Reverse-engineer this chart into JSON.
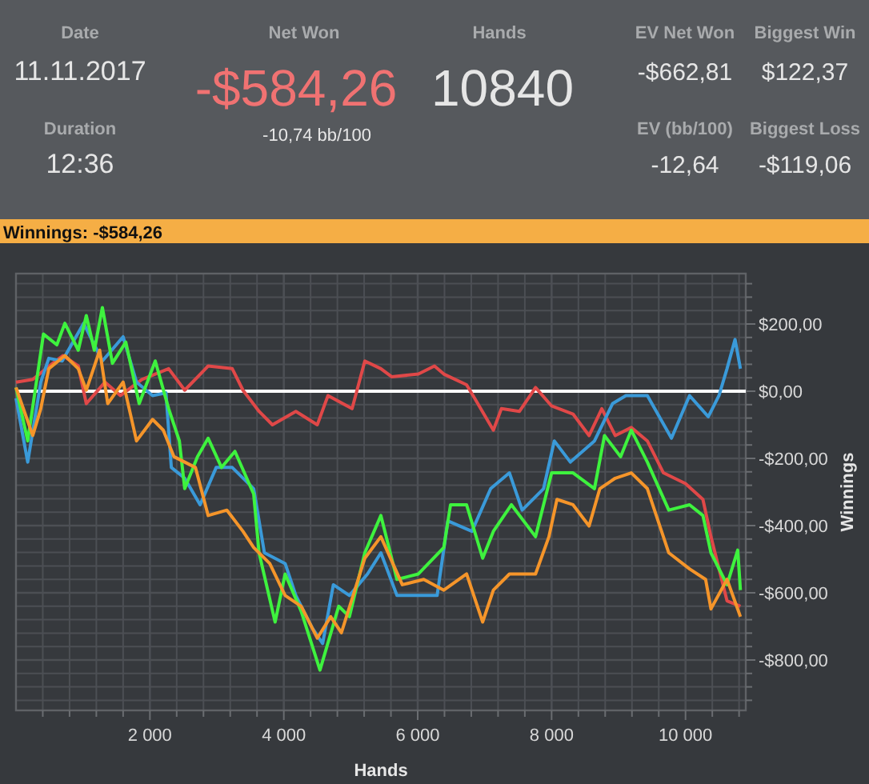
{
  "chart_data": [
    {
      "type": "other",
      "annotations": [
        "Date",
        "11.11.2017",
        "Duration",
        "12:36",
        "Net Won",
        "-$584,26",
        "-10,74 bb/100",
        "Hands",
        "10840",
        "EV Net Won",
        "-$662,81",
        "EV (bb/100)",
        "-12,64",
        "Biggest Win",
        "$122,37",
        "Biggest Loss",
        "-$119,06"
      ]
    },
    {
      "type": "line",
      "title": "Winnings: -$584,26",
      "xlabel": "Hands",
      "ylabel": "Winnings",
      "xlim": [
        0,
        10900
      ],
      "ylim": [
        -950,
        350
      ],
      "xticks": [
        {
          "value": 400,
          "label": null
        },
        {
          "value": 800,
          "label": null
        },
        {
          "value": 1200,
          "label": null
        },
        {
          "value": 1600,
          "label": null
        },
        {
          "value": 2000,
          "label": "2 000"
        },
        {
          "value": 2400,
          "label": null
        },
        {
          "value": 2800,
          "label": null
        },
        {
          "value": 3200,
          "label": null
        },
        {
          "value": 3600,
          "label": null
        },
        {
          "value": 4000,
          "label": "4 000"
        },
        {
          "value": 4400,
          "label": null
        },
        {
          "value": 4800,
          "label": null
        },
        {
          "value": 5200,
          "label": null
        },
        {
          "value": 5600,
          "label": null
        },
        {
          "value": 6000,
          "label": "6 000"
        },
        {
          "value": 6400,
          "label": null
        },
        {
          "value": 6800,
          "label": null
        },
        {
          "value": 7200,
          "label": null
        },
        {
          "value": 7600,
          "label": null
        },
        {
          "value": 8000,
          "label": "8 000"
        },
        {
          "value": 8400,
          "label": null
        },
        {
          "value": 8800,
          "label": null
        },
        {
          "value": 9200,
          "label": null
        },
        {
          "value": 9600,
          "label": null
        },
        {
          "value": 10000,
          "label": "10 000"
        },
        {
          "value": 10400,
          "label": null
        },
        {
          "value": 10800,
          "label": null
        }
      ],
      "yticks": [
        {
          "value": -920,
          "label": null
        },
        {
          "value": -880,
          "label": null
        },
        {
          "value": -840,
          "label": null
        },
        {
          "value": -800,
          "label": "-$800,00"
        },
        {
          "value": -760,
          "label": null
        },
        {
          "value": -720,
          "label": null
        },
        {
          "value": -680,
          "label": null
        },
        {
          "value": -640,
          "label": null
        },
        {
          "value": -600,
          "label": "-$600,00"
        },
        {
          "value": -560,
          "label": null
        },
        {
          "value": -520,
          "label": null
        },
        {
          "value": -480,
          "label": null
        },
        {
          "value": -440,
          "label": null
        },
        {
          "value": -400,
          "label": "-$400,00"
        },
        {
          "value": -360,
          "label": null
        },
        {
          "value": -320,
          "label": null
        },
        {
          "value": -280,
          "label": null
        },
        {
          "value": -240,
          "label": null
        },
        {
          "value": -200,
          "label": "-$200,00"
        },
        {
          "value": -160,
          "label": null
        },
        {
          "value": -120,
          "label": null
        },
        {
          "value": -80,
          "label": null
        },
        {
          "value": -40,
          "label": null
        },
        {
          "value": 0,
          "label": "$0,00"
        },
        {
          "value": 40,
          "label": null
        },
        {
          "value": 80,
          "label": null
        },
        {
          "value": 120,
          "label": null
        },
        {
          "value": 160,
          "label": null
        },
        {
          "value": 200,
          "label": "$200,00"
        },
        {
          "value": 240,
          "label": null
        },
        {
          "value": 280,
          "label": null
        },
        {
          "value": 320,
          "label": null
        }
      ],
      "grid": true,
      "ref_lines": [
        {
          "axis": "y",
          "value": 0,
          "color": "#ffffff"
        }
      ],
      "series": [
        {
          "color": "#e04848",
          "x": [
            0,
            250,
            550,
            700,
            930,
            1050,
            1330,
            1560,
            1880,
            2280,
            2520,
            2870,
            3230,
            3390,
            3630,
            3830,
            4180,
            4500,
            4660,
            5020,
            5210,
            5450,
            5610,
            6010,
            6250,
            6390,
            6730,
            6850,
            7130,
            7250,
            7520,
            7760,
            8000,
            8320,
            8560,
            8750,
            8950,
            9190,
            9430,
            9670,
            10000,
            10260,
            10380,
            10620,
            10820
          ],
          "values": [
            27,
            35,
            83,
            106,
            75,
            -37,
            27,
            -13,
            35,
            67,
            3,
            75,
            67,
            3,
            -60,
            -100,
            -60,
            -100,
            -13,
            -52,
            90,
            67,
            43,
            51,
            75,
            51,
            19,
            -21,
            -116,
            -52,
            -60,
            11,
            -44,
            -68,
            -132,
            -52,
            -132,
            -108,
            -148,
            -243,
            -275,
            -322,
            -433,
            -624,
            -640
          ]
        },
        {
          "color": "#3a9ad9",
          "x": [
            0,
            175,
            370,
            490,
            690,
            1010,
            1290,
            1600,
            1800,
            2040,
            2240,
            2320,
            2520,
            2750,
            2990,
            3230,
            3550,
            3710,
            4020,
            4180,
            4420,
            4580,
            4740,
            4980,
            5250,
            5450,
            5690,
            6010,
            6290,
            6450,
            6810,
            7090,
            7370,
            7560,
            7880,
            8040,
            8280,
            8640,
            8910,
            9110,
            9430,
            9790,
            10060,
            10340,
            10500,
            10620,
            10740,
            10820
          ],
          "values": [
            -21,
            -211,
            27,
            98,
            90,
            202,
            90,
            162,
            27,
            -13,
            -5,
            -227,
            -259,
            -338,
            -227,
            -227,
            -290,
            -481,
            -513,
            -608,
            -703,
            -751,
            -576,
            -608,
            -544,
            -481,
            -608,
            -608,
            -608,
            -386,
            -417,
            -290,
            -243,
            -354,
            -290,
            -148,
            -211,
            -148,
            -37,
            -13,
            -13,
            -140,
            -13,
            -76,
            -13,
            67,
            154,
            67
          ]
        },
        {
          "color": "#3ef23e",
          "x": [
            0,
            175,
            410,
            610,
            730,
            930,
            1050,
            1170,
            1290,
            1440,
            1640,
            1840,
            2080,
            2280,
            2440,
            2520,
            2710,
            2870,
            3070,
            3270,
            3550,
            3630,
            3870,
            4020,
            4260,
            4540,
            4820,
            4980,
            5210,
            5450,
            5690,
            6010,
            6390,
            6490,
            6730,
            6970,
            7130,
            7400,
            7760,
            8000,
            8320,
            8640,
            8790,
            9030,
            9190,
            9430,
            9750,
            10060,
            10260,
            10380,
            10620,
            10780,
            10820
          ],
          "values": [
            11,
            -148,
            170,
            138,
            202,
            122,
            225,
            122,
            249,
            83,
            146,
            -37,
            90,
            -52,
            -148,
            -290,
            -195,
            -140,
            -227,
            -179,
            -306,
            -481,
            -687,
            -544,
            -655,
            -830,
            -640,
            -671,
            -481,
            -370,
            -560,
            -544,
            -465,
            -338,
            -338,
            -497,
            -417,
            -338,
            -433,
            -243,
            -243,
            -290,
            -132,
            -195,
            -116,
            -211,
            -354,
            -338,
            -370,
            -481,
            -576,
            -473,
            -592
          ]
        },
        {
          "color": "#f5952a",
          "x": [
            0,
            250,
            370,
            490,
            730,
            930,
            1050,
            1250,
            1370,
            1600,
            1800,
            2040,
            2200,
            2360,
            2680,
            2870,
            3150,
            3390,
            3550,
            3790,
            4020,
            4260,
            4500,
            4700,
            4860,
            5210,
            5450,
            5770,
            6090,
            6390,
            6730,
            6970,
            7130,
            7370,
            7760,
            7960,
            8080,
            8320,
            8560,
            8720,
            8950,
            9190,
            9430,
            9750,
            10060,
            10300,
            10380,
            10620,
            10820
          ],
          "values": [
            11,
            -132,
            -52,
            67,
            106,
            67,
            3,
            122,
            -37,
            27,
            -148,
            -84,
            -116,
            -195,
            -227,
            -370,
            -354,
            -417,
            -465,
            -513,
            -608,
            -640,
            -735,
            -671,
            -719,
            -497,
            -433,
            -576,
            -560,
            -592,
            -544,
            -687,
            -592,
            -544,
            -544,
            -433,
            -322,
            -338,
            -401,
            -290,
            -259,
            -243,
            -290,
            -481,
            -529,
            -560,
            -648,
            -560,
            -671
          ]
        }
      ]
    }
  ]
}
